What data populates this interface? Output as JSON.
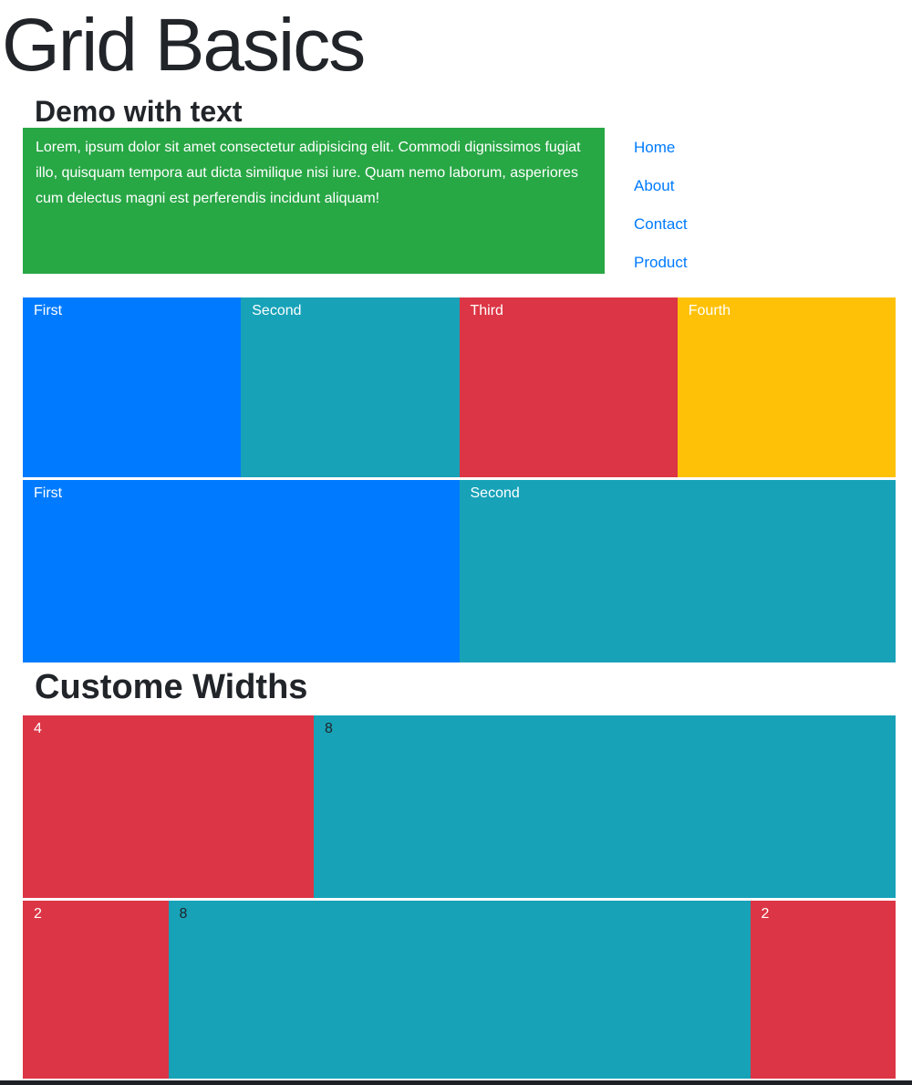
{
  "page": {
    "title": "Grid Basics"
  },
  "demo_section": {
    "heading": "Demo with text",
    "lorem_text": "Lorem, ipsum dolor sit amet consectetur adipisicing elit. Commodi dignissimos fugiat illo, quisquam tempora aut dicta similique nisi iure. Quam nemo laborum, asperiores cum delectus magni est perferendis incidunt aliquam!",
    "lorem_box": {
      "bg": "#28a745",
      "fg": "#ffffff"
    },
    "nav": {
      "links": [
        {
          "label": "Home"
        },
        {
          "label": "About"
        },
        {
          "label": "Contact"
        },
        {
          "label": "Product"
        }
      ],
      "link_color": "#007bff"
    },
    "row_four_cols": [
      {
        "label": "First",
        "bg": "#007bff",
        "fg": "#ffffff"
      },
      {
        "label": "Second",
        "bg": "#17a2b8",
        "fg": "#ffffff"
      },
      {
        "label": "Third",
        "bg": "#dc3545",
        "fg": "#ffffff"
      },
      {
        "label": "Fourth",
        "bg": "#ffc107",
        "fg": "#ffffff"
      }
    ],
    "row_two_cols": [
      {
        "label": "First",
        "bg": "#007bff",
        "fg": "#ffffff"
      },
      {
        "label": "Second",
        "bg": "#17a2b8",
        "fg": "#ffffff"
      }
    ]
  },
  "custom_section": {
    "heading": "Custome Widths",
    "row_4_8": [
      {
        "label": "4",
        "span": 4,
        "bg": "#dc3545",
        "fg": "#ffffff"
      },
      {
        "label": "8",
        "span": 8,
        "bg": "#17a2b8",
        "fg": "#212529"
      }
    ],
    "row_2_8_2": [
      {
        "label": "2",
        "span": 2,
        "bg": "#dc3545",
        "fg": "#ffffff"
      },
      {
        "label": "8",
        "span": 8,
        "bg": "#17a2b8",
        "fg": "#212529"
      },
      {
        "label": "2",
        "span": 2,
        "bg": "#dc3545",
        "fg": "#ffffff"
      }
    ]
  },
  "footer": {
    "bar_color": "#1d2125"
  },
  "colors": {
    "heading_text": "#212529",
    "page_background": "#ffffff"
  }
}
